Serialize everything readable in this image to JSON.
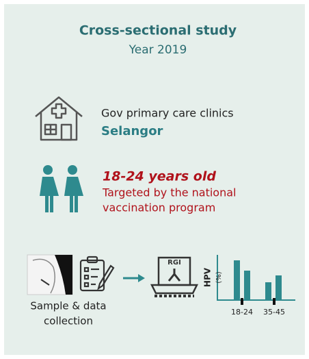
{
  "header": {
    "title": "Cross-sectional study",
    "subtitle": "Year 2019"
  },
  "setting": {
    "lines": [
      "Gov primary care clinics",
      "Selangor"
    ]
  },
  "population": {
    "age": "18-24 years old",
    "lines": [
      "Targeted by the national",
      "vaccination program"
    ]
  },
  "workflow": {
    "step1_lines": [
      "Sample & data",
      "collection"
    ],
    "machine_label": "RGI",
    "chart": {
      "y_label": "HPV",
      "y_unit": "(%)",
      "groups": [
        "18-24",
        "35-45"
      ]
    }
  }
}
